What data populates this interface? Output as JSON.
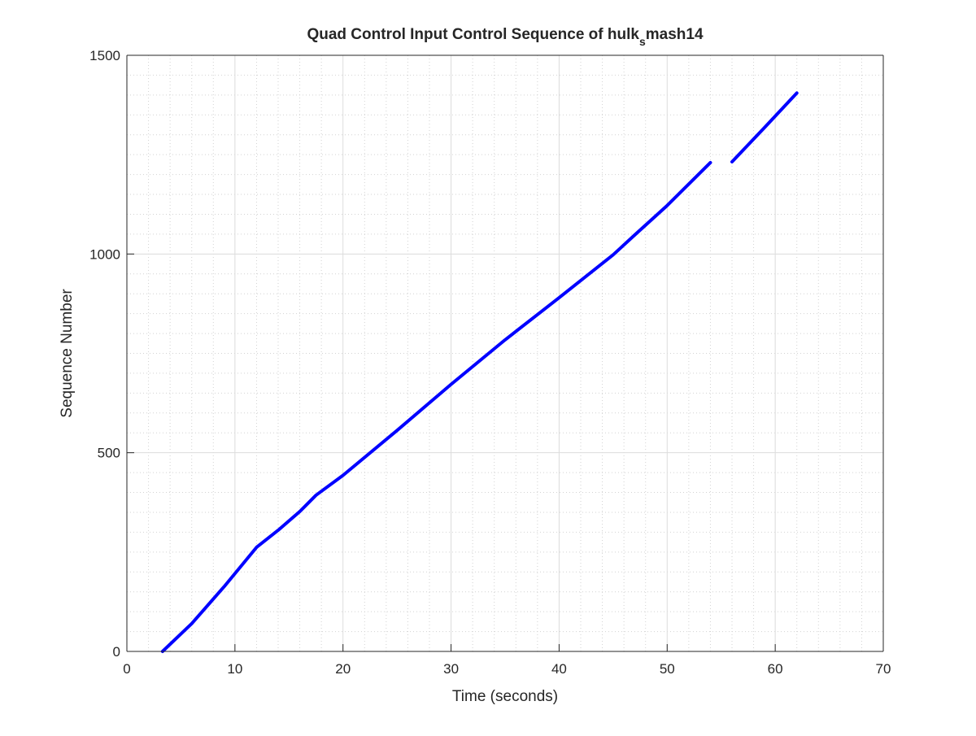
{
  "chart_data": {
    "type": "line",
    "title": {
      "main": "Quad Control Input Control Sequence of hulk",
      "subscript": "s",
      "rest": "mash14"
    },
    "xlabel": "Time (seconds)",
    "ylabel": "Sequence Number",
    "xlim": [
      0,
      70
    ],
    "ylim": [
      0,
      1500
    ],
    "xticks": [
      0,
      10,
      20,
      30,
      40,
      50,
      60,
      70
    ],
    "yticks": [
      0,
      500,
      1000,
      1500
    ],
    "grid": true,
    "minor_grid": true,
    "legend": null,
    "series": [
      {
        "color": "#0000ff",
        "segments": [
          [
            [
              3.3,
              0
            ],
            [
              6,
              70
            ],
            [
              9,
              163
            ],
            [
              12,
              262
            ],
            [
              14,
              305
            ],
            [
              16,
              352
            ],
            [
              17.5,
              393
            ],
            [
              20,
              443
            ],
            [
              25,
              556
            ],
            [
              30,
              672
            ],
            [
              35,
              784
            ],
            [
              40,
              890
            ],
            [
              45,
              998
            ],
            [
              47,
              1048
            ],
            [
              50,
              1122
            ],
            [
              52,
              1176
            ],
            [
              54,
              1230
            ]
          ],
          [
            [
              56,
              1232
            ],
            [
              59,
              1318
            ],
            [
              62,
              1405
            ]
          ]
        ]
      }
    ]
  }
}
